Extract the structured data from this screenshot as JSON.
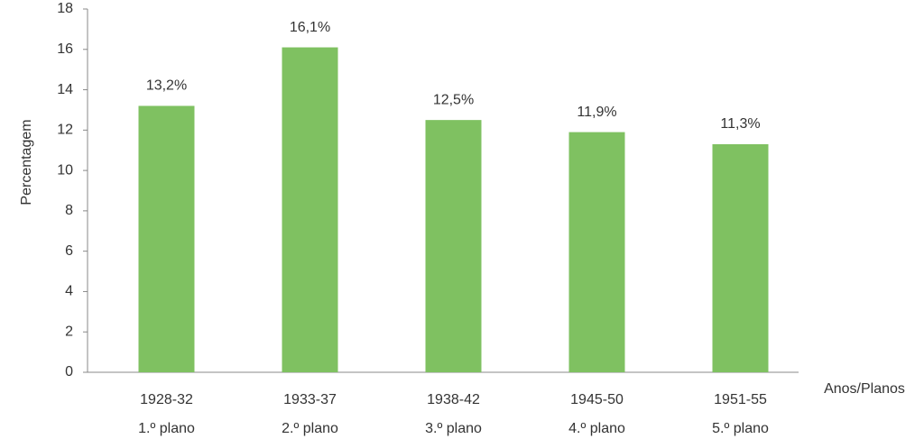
{
  "chart_data": {
    "type": "bar",
    "categories": [
      [
        "1928-32",
        "1.º plano"
      ],
      [
        "1933-37",
        "2.º plano"
      ],
      [
        "1938-42",
        "3.º plano"
      ],
      [
        "1945-50",
        "4.º plano"
      ],
      [
        "1951-55",
        "5.º plano"
      ]
    ],
    "values": [
      13.2,
      16.1,
      12.5,
      11.9,
      11.3
    ],
    "value_labels": [
      "13,2%",
      "16,1%",
      "12,5%",
      "11,9%",
      "11,3%"
    ],
    "color": "#7fc161",
    "ylim": [
      0,
      18
    ],
    "yticks": [
      0,
      2,
      4,
      6,
      8,
      10,
      12,
      14,
      16,
      18
    ],
    "y_label": "Percentagem",
    "x_label": "Anos/Planos",
    "grid": false
  }
}
